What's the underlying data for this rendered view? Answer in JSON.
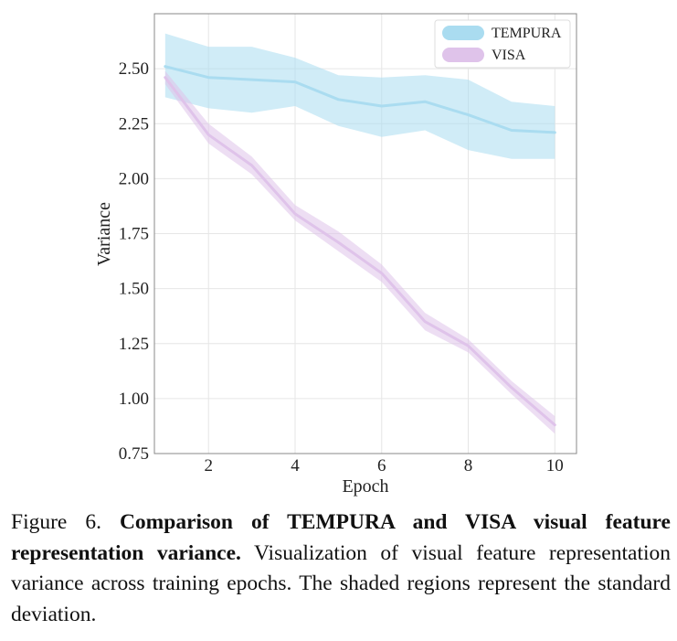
{
  "chart_data": {
    "type": "line",
    "xlabel": "Epoch",
    "ylabel": "Variance",
    "xlim": [
      0.75,
      10.5
    ],
    "ylim": [
      0.75,
      2.75
    ],
    "xticks": [
      2,
      4,
      6,
      8,
      10
    ],
    "yticks": [
      0.75,
      1.0,
      1.25,
      1.5,
      1.75,
      2.0,
      2.25,
      2.5
    ],
    "xtick_labels": [
      "2",
      "4",
      "6",
      "8",
      "10"
    ],
    "ytick_labels": [
      "0.75",
      "1.00",
      "1.25",
      "1.50",
      "1.75",
      "2.00",
      "2.25",
      "2.50"
    ],
    "grid": true,
    "legend_position": "top-right",
    "x": [
      1,
      2,
      3,
      4,
      5,
      6,
      7,
      8,
      9,
      10
    ],
    "series": [
      {
        "name": "TEMPURA",
        "color": "#aadcf0",
        "values": [
          2.51,
          2.46,
          2.45,
          2.44,
          2.36,
          2.33,
          2.35,
          2.29,
          2.22,
          2.21
        ],
        "upper": [
          2.66,
          2.6,
          2.6,
          2.55,
          2.47,
          2.46,
          2.47,
          2.45,
          2.35,
          2.33
        ],
        "lower": [
          2.37,
          2.32,
          2.3,
          2.33,
          2.24,
          2.19,
          2.22,
          2.13,
          2.09,
          2.09
        ]
      },
      {
        "name": "VISA",
        "color": "#dfc3ea",
        "values": [
          2.46,
          2.2,
          2.06,
          1.84,
          1.71,
          1.57,
          1.35,
          1.24,
          1.05,
          0.88
        ],
        "upper": [
          2.49,
          2.25,
          2.1,
          1.88,
          1.76,
          1.61,
          1.39,
          1.27,
          1.08,
          0.92
        ],
        "lower": [
          2.43,
          2.16,
          2.02,
          1.81,
          1.67,
          1.53,
          1.31,
          1.21,
          1.02,
          0.84
        ]
      }
    ]
  },
  "caption": {
    "label": "Figure 6.",
    "bold": "Comparison of TEMPURA and VISA visual feature representation variance.",
    "text": "Visualization of visual feature representation variance across training epochs. The shaded regions represent the standard deviation."
  }
}
